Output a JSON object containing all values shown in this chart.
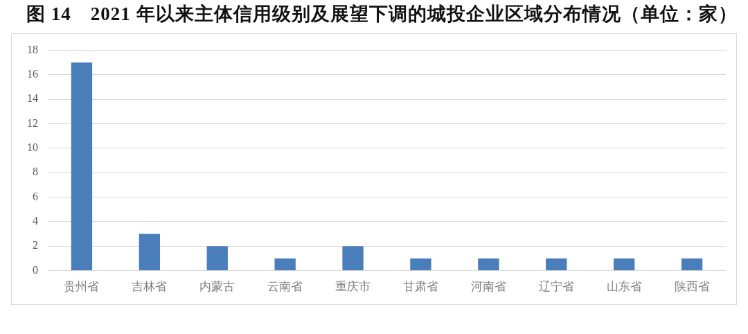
{
  "chart_data": {
    "type": "bar",
    "title": "图 14　2021 年以来主体信用级别及展望下调的城投企业区域分布情况（单位：家）",
    "categories": [
      "贵州省",
      "吉林省",
      "内蒙古",
      "云南省",
      "重庆市",
      "甘肃省",
      "河南省",
      "辽宁省",
      "山东省",
      "陕西省"
    ],
    "values": [
      17,
      3,
      2,
      1,
      2,
      1,
      1,
      1,
      1,
      1
    ],
    "color": "#4a7ebb",
    "ylim": [
      0,
      18
    ],
    "yticks": [
      0,
      2,
      4,
      6,
      8,
      10,
      12,
      14,
      16,
      18
    ],
    "grid": "y"
  }
}
